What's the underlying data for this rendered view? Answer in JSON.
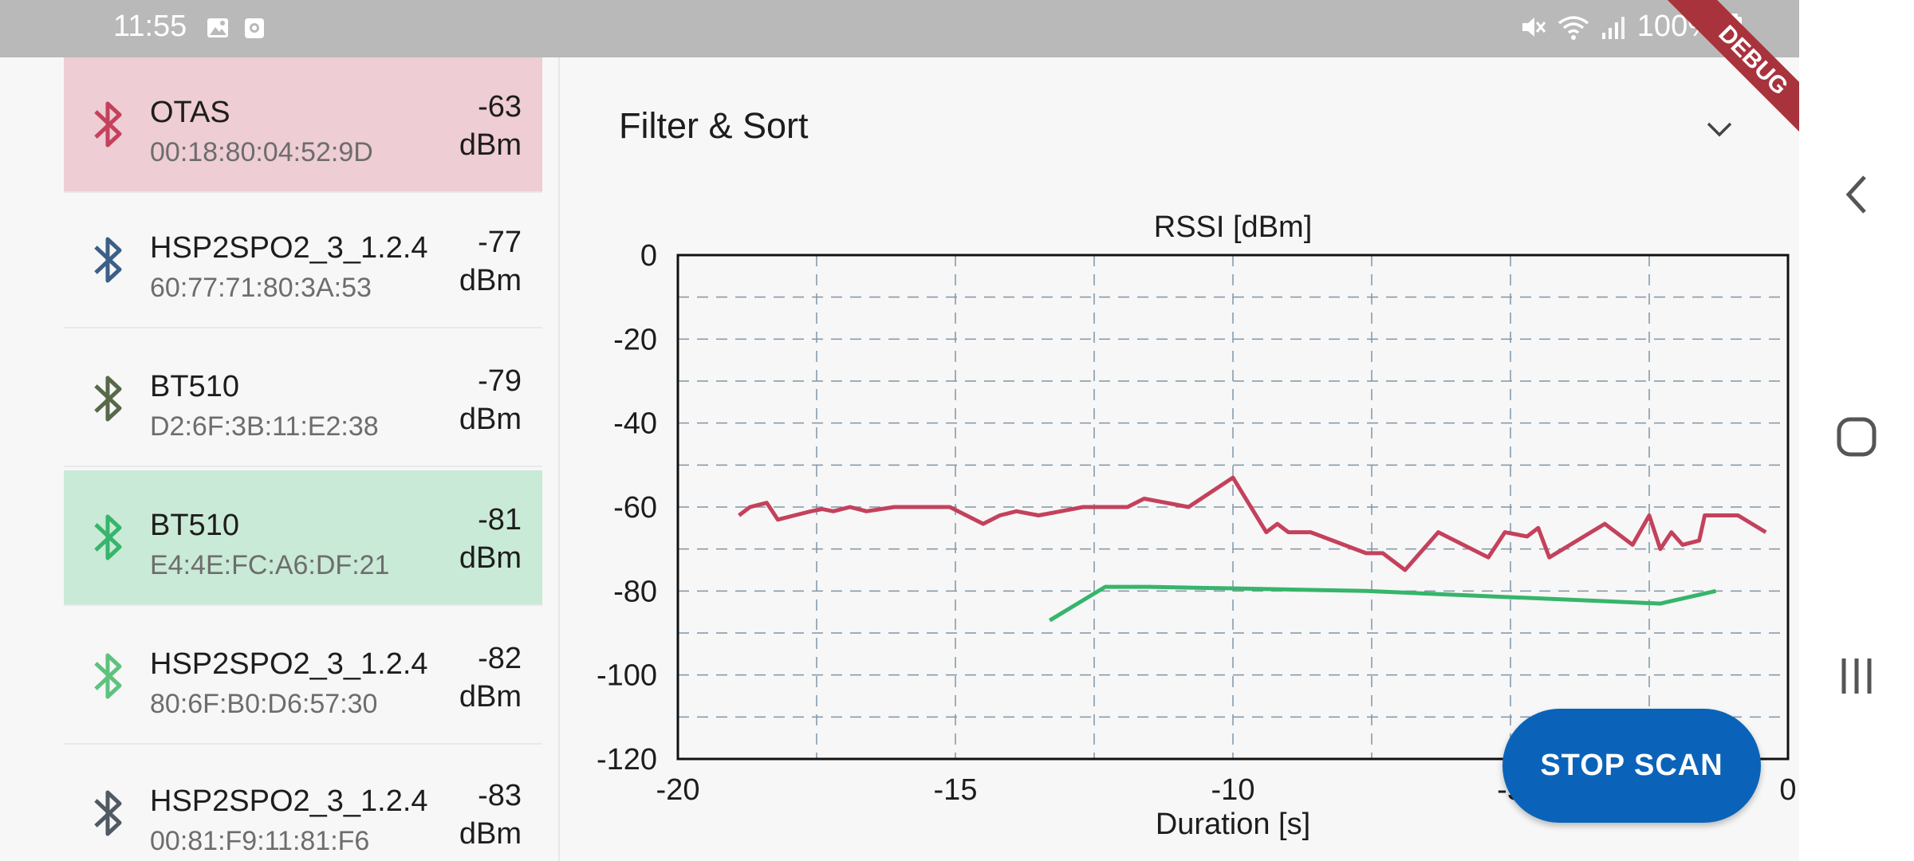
{
  "status_bar": {
    "time": "11:55",
    "battery": "100%",
    "icons": [
      "image-icon",
      "record-icon",
      "mute-icon",
      "wifi-icon",
      "signal-icon",
      "battery-icon"
    ]
  },
  "debug_banner": "DEBUG",
  "devices": [
    {
      "name": "OTAS",
      "address": "00:18:80:04:52:9D",
      "rssi": "-63",
      "unit": "dBm",
      "color": "#c4415c",
      "bg": "#eecdd4"
    },
    {
      "name": "HSP2SPO2_3_1.2.4",
      "address": "60:77:71:80:3A:53",
      "rssi": "-77",
      "unit": "dBm",
      "color": "#3d5f86",
      "bg": "#f7f7f7"
    },
    {
      "name": "BT510",
      "address": "D2:6F:3B:11:E2:38",
      "rssi": "-79",
      "unit": "dBm",
      "color": "#56694a",
      "bg": "#f7f7f7"
    },
    {
      "name": "BT510",
      "address": "E4:4E:FC:A6:DF:21",
      "rssi": "-81",
      "unit": "dBm",
      "color": "#36b56b",
      "bg": "#c9ead6"
    },
    {
      "name": "HSP2SPO2_3_1.2.4",
      "address": "80:6F:B0:D6:57:30",
      "rssi": "-82",
      "unit": "dBm",
      "color": "#5ec27f",
      "bg": "#f7f7f7"
    },
    {
      "name": "HSP2SPO2_3_1.2.4",
      "address": "00:81:F9:11:81:F6",
      "rssi": "-83",
      "unit": "dBm",
      "color": "#515a64",
      "bg": "#f7f7f7"
    }
  ],
  "filter": {
    "title": "Filter & Sort"
  },
  "chart_data": {
    "type": "line",
    "title": "RSSI [dBm]",
    "xlabel": "Duration [s]",
    "ylabel": "",
    "xlim": [
      -20,
      0
    ],
    "ylim": [
      -120,
      0
    ],
    "x_ticks": [
      -20,
      -15,
      -10,
      -5,
      0
    ],
    "y_ticks": [
      0,
      -20,
      -40,
      -60,
      -80,
      -100,
      -120
    ],
    "grid": true,
    "legend": "none",
    "series": [
      {
        "color": "#c4415c",
        "x": [
          -18.9,
          -18.7,
          -18.4,
          -18.2,
          -17.9,
          -17.6,
          -17.4,
          -17.2,
          -16.9,
          -16.6,
          -16.1,
          -15.6,
          -15.1,
          -14.5,
          -14.2,
          -13.9,
          -13.5,
          -13.1,
          -12.7,
          -12.2,
          -11.9,
          -11.6,
          -11.2,
          -10.8,
          -10.0,
          -9.4,
          -9.2,
          -9.0,
          -8.6,
          -8.0,
          -7.6,
          -7.3,
          -6.9,
          -6.3,
          -5.4,
          -5.1,
          -4.7,
          -4.5,
          -4.3,
          -3.8,
          -3.3,
          -2.8,
          -2.5,
          -2.3,
          -2.1,
          -1.9,
          -1.6,
          -1.5,
          -1.4,
          -0.9,
          -0.4
        ],
        "y": [
          -62,
          -60,
          -59,
          -63,
          -62,
          -61,
          -60.5,
          -61,
          -60,
          -61,
          -60,
          -60,
          -60,
          -64,
          -62,
          -61,
          -62,
          -61,
          -60,
          -60,
          -60,
          -58,
          -59,
          -60,
          -53,
          -66,
          -64,
          -66,
          -66,
          -69,
          -71,
          -71,
          -75,
          -66,
          -72,
          -66,
          -67,
          -65,
          -72,
          -68,
          -64,
          -69,
          -62,
          -70,
          -66,
          -69,
          -68,
          -62,
          -62,
          -62,
          -66
        ]
      },
      {
        "color": "#36b56b",
        "x": [
          -13.3,
          -12.3,
          -11.5,
          -7.6,
          -2.3,
          -1.3
        ],
        "y": [
          -87,
          -79,
          -79,
          -80,
          -83,
          -80
        ]
      }
    ]
  },
  "actions": {
    "stop_scan": "STOP SCAN"
  }
}
